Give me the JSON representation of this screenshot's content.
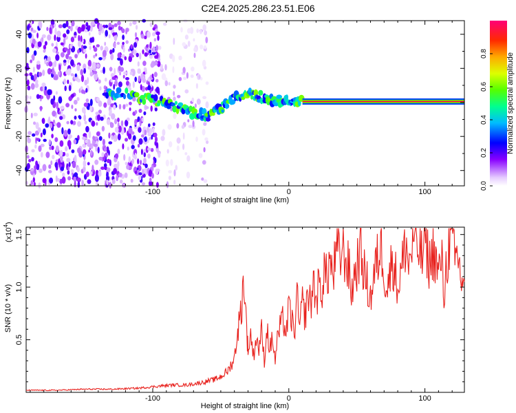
{
  "title": "C2E4.2025.286.23.51.E06",
  "chart_data": [
    {
      "type": "heatmap",
      "name": "spectrogram",
      "xlabel": "Height of straight line (km)",
      "ylabel": "Frequency (Hz)",
      "xlim": [
        -193,
        129
      ],
      "ylim": [
        -49,
        48
      ],
      "x_ticks": [
        -100,
        0,
        100
      ],
      "y_ticks": [
        -40,
        -20,
        0,
        20,
        40
      ],
      "colorbar": {
        "label": "Normalized spectral amplitude",
        "range": [
          0,
          1
        ],
        "ticks": [
          "0.0",
          "0.2",
          "0.4",
          "0.6",
          "0.8"
        ],
        "tick_values": [
          0.0,
          0.2,
          0.4,
          0.6,
          0.8
        ]
      },
      "features": [
        {
          "kind": "noise",
          "x_range": [
            -193,
            -95
          ],
          "f_range": [
            -49,
            48
          ],
          "amplitude": 0.12
        },
        {
          "kind": "sparse_noise",
          "x_range": [
            -95,
            -60
          ],
          "f_range": [
            -49,
            48
          ],
          "amplitude": 0.05
        },
        {
          "kind": "signal_track",
          "points": [
            [
              -135,
              6
            ],
            [
              -115,
              4
            ],
            [
              -100,
              2
            ],
            [
              -85,
              -2
            ],
            [
              -70,
              -6
            ],
            [
              -60,
              -8
            ],
            [
              -50,
              -4
            ],
            [
              -40,
              2
            ],
            [
              -30,
              6
            ],
            [
              -20,
              3
            ],
            [
              -10,
              1
            ],
            [
              0,
              1
            ],
            [
              10,
              0.5
            ]
          ],
          "amplitude": 0.45
        },
        {
          "kind": "carrier",
          "x_range": [
            10,
            129
          ],
          "frequency": 0.5,
          "amplitude": 0.95
        }
      ]
    },
    {
      "type": "line",
      "name": "snr",
      "xlabel": "Height of straight line (km)",
      "ylabel": "SNR (10 * v/v)",
      "y_multiplier": "(x10",
      "y_multiplier_exp": "4",
      "xlim": [
        -193,
        129
      ],
      "ylim": [
        0,
        1.57
      ],
      "x_ticks": [
        -100,
        0,
        100
      ],
      "y_ticks": [
        "0.5",
        "1.0",
        "1.5"
      ],
      "y_tick_values": [
        0.5,
        1.0,
        1.5
      ],
      "series": [
        {
          "name": "SNR",
          "color": "#e8221e",
          "x": [
            -193,
            -170,
            -150,
            -130,
            -110,
            -95,
            -85,
            -75,
            -65,
            -55,
            -50,
            -45,
            -40,
            -38,
            -35,
            -33,
            -31,
            -30,
            -28,
            -26,
            -24,
            -22,
            -20,
            -18,
            -16,
            -14,
            -12,
            -10,
            -8,
            -6,
            -4,
            -2,
            0,
            2,
            4,
            6,
            8,
            10,
            12,
            14,
            16,
            18,
            20,
            22,
            24,
            26,
            28,
            30,
            32,
            34,
            36,
            38,
            40,
            42,
            44,
            46,
            48,
            50,
            52,
            54,
            56,
            58,
            60,
            62,
            64,
            66,
            68,
            70,
            72,
            74,
            76,
            78,
            80,
            82,
            84,
            86,
            88,
            90,
            92,
            94,
            96,
            98,
            100,
            102,
            104,
            106,
            108,
            110,
            112,
            114,
            116,
            118,
            120,
            122,
            124,
            126,
            129
          ],
          "values": [
            0.02,
            0.02,
            0.03,
            0.03,
            0.04,
            0.06,
            0.07,
            0.07,
            0.09,
            0.12,
            0.15,
            0.2,
            0.32,
            0.55,
            0.78,
            1.1,
            0.6,
            0.4,
            0.55,
            0.35,
            0.52,
            0.42,
            0.58,
            0.3,
            0.62,
            0.4,
            0.52,
            0.3,
            0.55,
            0.62,
            0.7,
            0.55,
            0.8,
            0.7,
            0.55,
            0.9,
            0.6,
            0.85,
            0.72,
            0.95,
            0.82,
            1.05,
            0.88,
            1.0,
            0.95,
            1.18,
            1.05,
            1.28,
            1.1,
            1.22,
            1.35,
            1.3,
            1.38,
            1.25,
            1.18,
            0.95,
            1.1,
            1.2,
            1.35,
            1.25,
            1.1,
            1.0,
            0.9,
            1.05,
            1.2,
            1.3,
            1.42,
            1.18,
            1.0,
            1.08,
            1.3,
            1.15,
            1.0,
            1.12,
            1.25,
            1.45,
            1.2,
            1.35,
            1.5,
            1.3,
            1.4,
            1.25,
            1.55,
            1.3,
            1.2,
            1.38,
            1.25,
            1.1,
            1.3,
            0.92,
            1.25,
            1.42,
            1.48,
            1.2,
            1.35,
            1.1,
            1.05
          ]
        }
      ]
    }
  ]
}
